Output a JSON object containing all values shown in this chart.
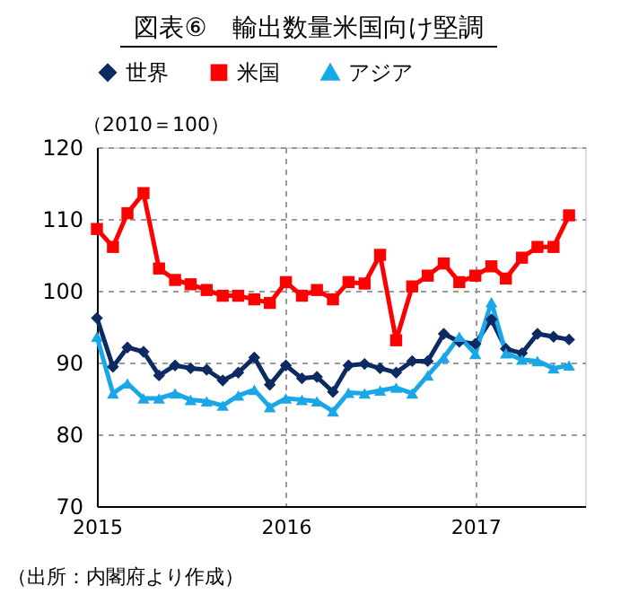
{
  "chart_data": {
    "type": "line",
    "title": "図表⑥　輸出数量米国向け堅調",
    "x": [
      "2015-01",
      "2015-02",
      "2015-03",
      "2015-04",
      "2015-05",
      "2015-06",
      "2015-07",
      "2015-08",
      "2015-09",
      "2015-10",
      "2015-11",
      "2015-12",
      "2016-01",
      "2016-02",
      "2016-03",
      "2016-04",
      "2016-05",
      "2016-06",
      "2016-07",
      "2016-08",
      "2016-09",
      "2016-10",
      "2016-11",
      "2016-12",
      "2017-01",
      "2017-02",
      "2017-03",
      "2017-04",
      "2017-05",
      "2017-06",
      "2017-07"
    ],
    "series": [
      {
        "name": "世界",
        "color": "#0d2a63",
        "marker": "diamond",
        "values": [
          96.2,
          89.4,
          92.1,
          91.5,
          88.2,
          89.6,
          89.2,
          89.0,
          87.5,
          88.6,
          90.7,
          86.9,
          89.6,
          87.8,
          88.0,
          85.9,
          89.6,
          89.8,
          89.2,
          88.6,
          90.2,
          90.2,
          94.0,
          92.9,
          92.6,
          96.0,
          91.9,
          91.3,
          94.0,
          93.6,
          93.2
        ]
      },
      {
        "name": "米国",
        "color": "#ff0000",
        "marker": "square",
        "values": [
          108.6,
          106.1,
          110.8,
          113.6,
          103.1,
          101.5,
          100.9,
          100.1,
          99.3,
          99.3,
          98.8,
          98.3,
          101.2,
          99.3,
          100.1,
          98.8,
          101.2,
          101.0,
          105.0,
          93.1,
          100.6,
          102.1,
          103.8,
          101.2,
          102.1,
          103.4,
          101.7,
          104.6,
          106.1,
          106.1,
          110.5
        ]
      },
      {
        "name": "アジア",
        "color": "#1aa7e8",
        "marker": "triangle",
        "values": [
          93.6,
          85.7,
          87.1,
          85.0,
          85.0,
          85.7,
          84.8,
          84.6,
          84.0,
          85.4,
          86.2,
          83.8,
          85.0,
          84.8,
          84.6,
          83.2,
          85.8,
          85.7,
          86.1,
          86.5,
          85.7,
          88.2,
          90.7,
          93.6,
          91.2,
          98.4,
          91.3,
          90.4,
          90.2,
          89.2,
          89.6
        ]
      }
    ],
    "xlim": [
      "2015-01",
      "2017-08"
    ],
    "xticks": [
      "2015",
      "2016",
      "2017"
    ],
    "ylim": [
      70,
      120
    ],
    "yticks": [
      70,
      80,
      90,
      100,
      110,
      120
    ],
    "grid": true,
    "legend": "top",
    "line_style": "solid",
    "annotations": [
      "（2010＝100）",
      "（出所：内閣府より作成）"
    ]
  }
}
